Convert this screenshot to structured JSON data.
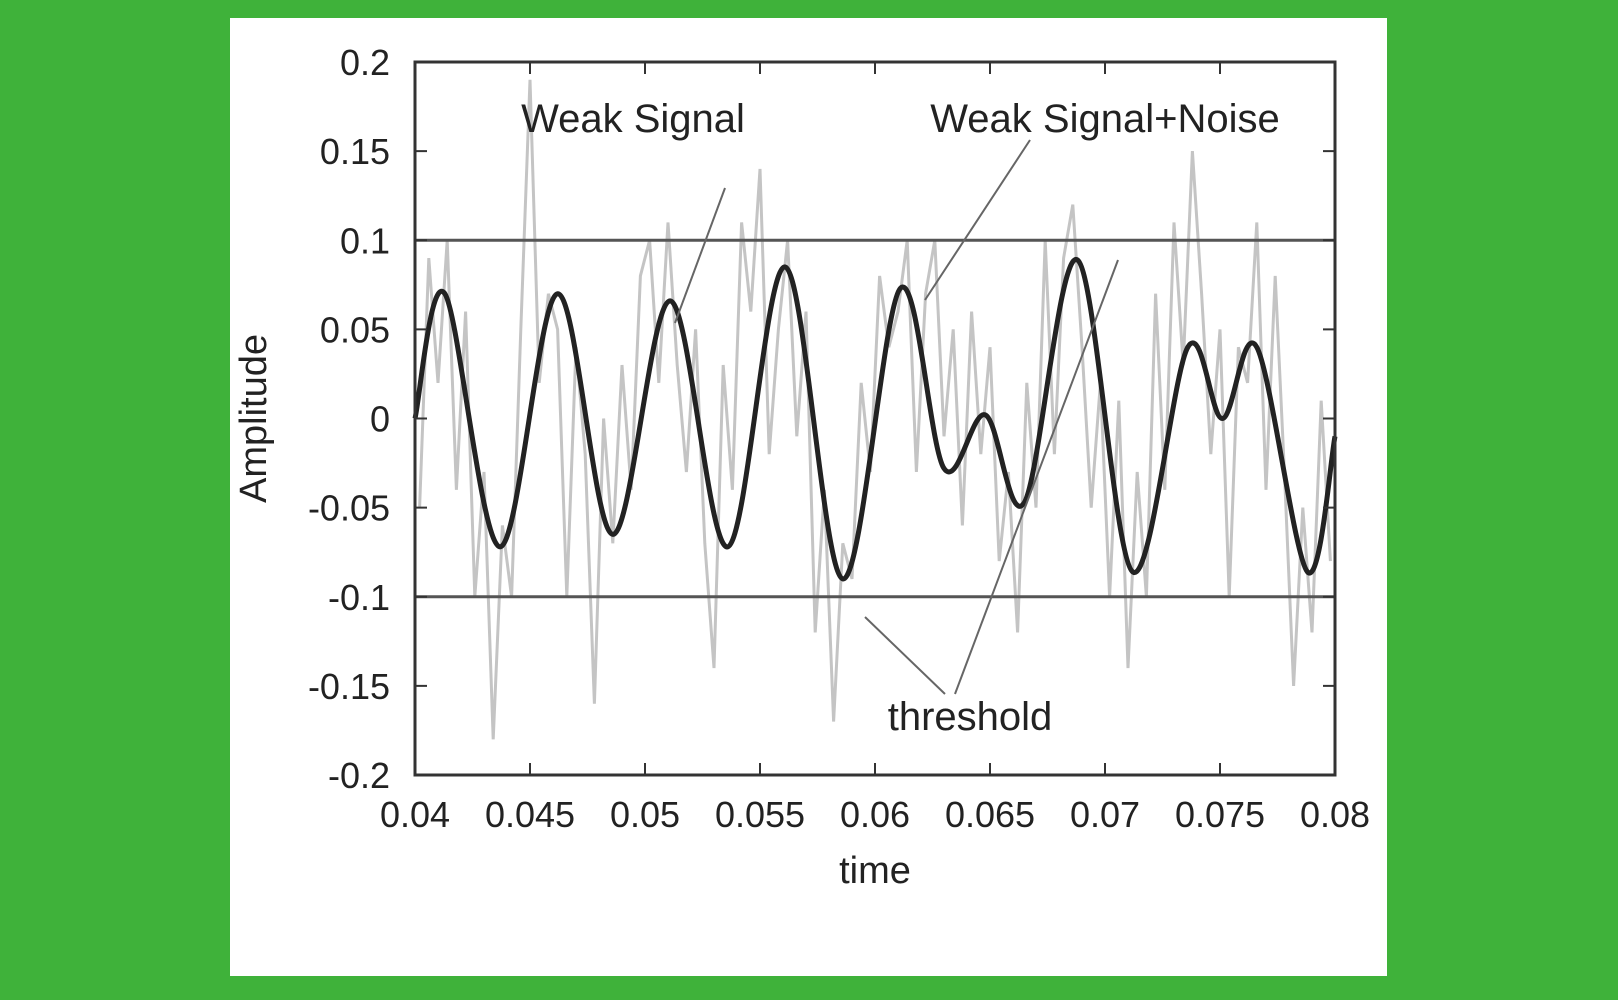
{
  "colors": {
    "background": "#3fb23a",
    "card": "#ffffff",
    "weak_signal": "#222222",
    "noisy_signal": "#c4c4c4",
    "threshold": "#555555",
    "axis": "#333333"
  },
  "chart_data": {
    "type": "line",
    "xlabel": "time",
    "ylabel": "Amplitude",
    "xlim": [
      0.04,
      0.08
    ],
    "ylim": [
      -0.2,
      0.2
    ],
    "xticks": [
      "0.04",
      "0.045",
      "0.05",
      "0.055",
      "0.06",
      "0.065",
      "0.07",
      "0.075",
      "0.08"
    ],
    "yticks": [
      "0.2",
      "0.15",
      "0.1",
      "0.05",
      "0",
      "-0.05",
      "-0.1",
      "-0.15",
      "-0.2"
    ],
    "grid": false,
    "annotations": [
      {
        "text": "Weak Signal",
        "points_to": "weak-signal"
      },
      {
        "text": "Weak Signal+Noise",
        "points_to": "noisy-signal"
      },
      {
        "text": "threshold",
        "points_to": "threshold-lines"
      }
    ],
    "series": [
      {
        "name": "Weak Signal",
        "style": "bold",
        "x": [
          0.04,
          0.0413,
          0.0437,
          0.0462,
          0.0486,
          0.0511,
          0.0536,
          0.0561,
          0.0586,
          0.0611,
          0.063,
          0.0648,
          0.0665,
          0.0688,
          0.0712,
          0.0736,
          0.0751,
          0.0766,
          0.0788,
          0.08
        ],
        "y": [
          0.0,
          0.07,
          -0.072,
          0.07,
          -0.065,
          0.066,
          -0.072,
          0.085,
          -0.09,
          0.073,
          -0.028,
          0.002,
          -0.047,
          0.089,
          -0.086,
          0.04,
          0.0,
          0.04,
          -0.086,
          -0.01
        ]
      },
      {
        "name": "Weak Signal+Noise",
        "style": "light",
        "x": [
          0.0402,
          0.0406,
          0.041,
          0.0414,
          0.0418,
          0.0422,
          0.0426,
          0.043,
          0.0434,
          0.0438,
          0.0442,
          0.0446,
          0.045,
          0.0454,
          0.0458,
          0.0462,
          0.0466,
          0.047,
          0.0474,
          0.0478,
          0.0482,
          0.0486,
          0.049,
          0.0494,
          0.0498,
          0.0502,
          0.0506,
          0.051,
          0.0514,
          0.0518,
          0.0522,
          0.0526,
          0.053,
          0.0534,
          0.0538,
          0.0542,
          0.0546,
          0.055,
          0.0554,
          0.0558,
          0.0562,
          0.0566,
          0.057,
          0.0574,
          0.0578,
          0.0582,
          0.0586,
          0.059,
          0.0594,
          0.0598,
          0.0602,
          0.0606,
          0.061,
          0.0614,
          0.0618,
          0.0622,
          0.0626,
          0.063,
          0.0634,
          0.0638,
          0.0642,
          0.0646,
          0.065,
          0.0654,
          0.0658,
          0.0662,
          0.0666,
          0.067,
          0.0674,
          0.0678,
          0.0682,
          0.0686,
          0.069,
          0.0694,
          0.0698,
          0.0702,
          0.0706,
          0.071,
          0.0714,
          0.0718,
          0.0722,
          0.0726,
          0.073,
          0.0734,
          0.0738,
          0.0742,
          0.0746,
          0.075,
          0.0754,
          0.0758,
          0.0762,
          0.0766,
          0.077,
          0.0774,
          0.0778,
          0.0782,
          0.0786,
          0.079,
          0.0794,
          0.0798
        ],
        "y": [
          -0.05,
          0.09,
          0.02,
          0.1,
          -0.04,
          0.06,
          -0.1,
          -0.03,
          -0.18,
          -0.06,
          -0.1,
          0.05,
          0.19,
          0.02,
          0.07,
          0.05,
          -0.1,
          0.04,
          -0.02,
          -0.16,
          0.0,
          -0.07,
          0.03,
          -0.04,
          0.08,
          0.1,
          0.02,
          0.11,
          0.03,
          -0.03,
          0.05,
          -0.07,
          -0.14,
          0.03,
          -0.04,
          0.11,
          0.06,
          0.14,
          -0.02,
          0.05,
          0.1,
          -0.01,
          0.06,
          -0.12,
          -0.04,
          -0.17,
          -0.07,
          -0.09,
          0.02,
          -0.03,
          0.08,
          0.04,
          0.06,
          0.1,
          -0.03,
          0.07,
          0.1,
          -0.01,
          0.05,
          -0.06,
          0.06,
          -0.02,
          0.04,
          -0.08,
          -0.03,
          -0.12,
          0.02,
          -0.05,
          0.1,
          -0.02,
          0.09,
          0.12,
          0.04,
          -0.05,
          0.02,
          -0.1,
          0.01,
          -0.14,
          -0.03,
          -0.1,
          0.07,
          -0.04,
          0.11,
          0.03,
          0.15,
          0.07,
          -0.02,
          0.05,
          -0.1,
          0.04,
          0.02,
          0.11,
          -0.04,
          0.08,
          -0.03,
          -0.15,
          -0.05,
          -0.12,
          0.01,
          -0.08
        ]
      },
      {
        "name": "threshold (upper)",
        "style": "threshold",
        "x": [
          0.04,
          0.08
        ],
        "y": [
          0.1,
          0.1
        ]
      },
      {
        "name": "threshold (lower)",
        "style": "threshold",
        "x": [
          0.04,
          0.08
        ],
        "y": [
          -0.1,
          -0.1
        ]
      }
    ]
  }
}
